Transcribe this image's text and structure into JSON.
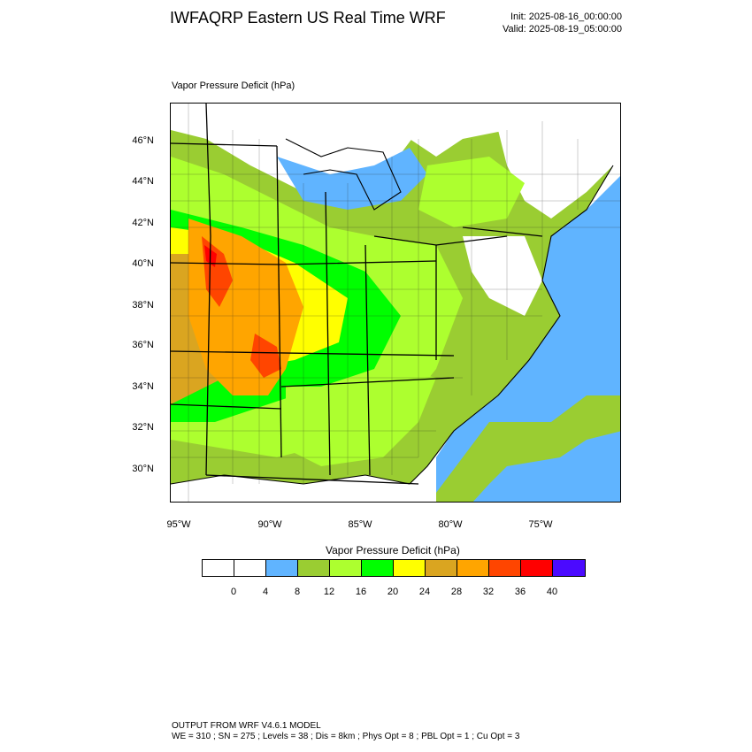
{
  "header": {
    "title": "IWFAQRP Eastern US Real Time WRF",
    "init": "Init: 2025-08-16_00:00:00",
    "valid": "Valid: 2025-08-19_05:00:00"
  },
  "map": {
    "field_label": "Vapor Pressure Deficit   (hPa)",
    "lat_labels": [
      "46°N",
      "44°N",
      "42°N",
      "40°N",
      "38°N",
      "36°N",
      "34°N",
      "32°N",
      "30°N"
    ],
    "lon_labels": [
      "95°W",
      "90°W",
      "85°W",
      "80°W",
      "75°W"
    ],
    "colors": {
      "land_none": "#ffffff",
      "blue": "#60b4ff",
      "olive": "#9acd32",
      "light_green": "#adff2f",
      "green": "#00ff00",
      "yellow": "#ffff00",
      "tan": "#daa520",
      "orange": "#ffa500",
      "orange_red": "#ff4500",
      "red": "#ff0000",
      "violet": "#4b0aff"
    }
  },
  "colorbar": {
    "title": "Vapor Pressure Deficit  (hPa)",
    "colors": [
      "#ffffff",
      "#ffffff",
      "#60b4ff",
      "#9acd32",
      "#adff2f",
      "#00ff00",
      "#ffff00",
      "#daa520",
      "#ffa500",
      "#ff4500",
      "#ff0000",
      "#4b0aff"
    ],
    "labels": [
      "0",
      "4",
      "8",
      "12",
      "16",
      "20",
      "24",
      "28",
      "32",
      "36",
      "40"
    ]
  },
  "footer": {
    "line1": "OUTPUT FROM WRF V4.6.1 MODEL",
    "line2": "WE = 310 ; SN = 275 ; Levels = 38 ; Dis = 8km ; Phys Opt = 8 ; PBL Opt = 1 ; Cu Opt = 3"
  }
}
